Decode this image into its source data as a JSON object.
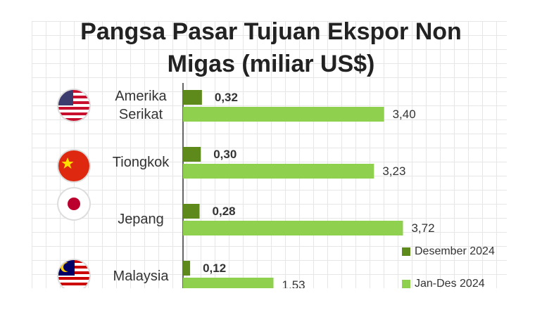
{
  "chart_data": {
    "type": "bar",
    "orientation": "horizontal",
    "title": "Pangsa Pasar Tujuan Ekspor Non Migas (miliar US$)",
    "categories": [
      "Amerika Serikat",
      "Tiongkok",
      "Jepang",
      "Malaysia"
    ],
    "series": [
      {
        "name": "Desember 2024",
        "color": "#5e8a1c",
        "values": [
          0.32,
          0.3,
          0.28,
          0.12
        ],
        "value_labels": [
          "0,32",
          "0,30",
          "0,28",
          "0,12"
        ]
      },
      {
        "name": "Jan-Des 2024",
        "color": "#8fd14f",
        "values": [
          3.4,
          3.23,
          3.72,
          1.53
        ],
        "value_labels": [
          "3,40",
          "3,23",
          "3,72",
          "1,53"
        ]
      }
    ]
  }
}
